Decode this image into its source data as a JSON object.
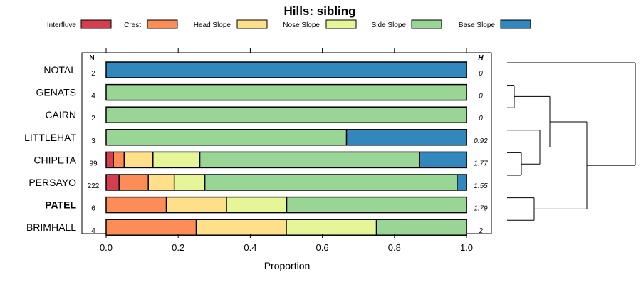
{
  "chart_data": {
    "type": "bar",
    "stacked": true,
    "orientation": "horizontal",
    "title": "Hills: sibling",
    "xlabel": "Proportion",
    "xlim": [
      0,
      1
    ],
    "xticks": [
      "0.0",
      "0.2",
      "0.4",
      "0.6",
      "0.8",
      "1.0"
    ],
    "n_header": "N",
    "h_header": "H",
    "legend_position": "top",
    "categories_order": [
      "Interfluve",
      "Crest",
      "Head Slope",
      "Nose Slope",
      "Side Slope",
      "Base Slope"
    ],
    "legend": [
      {
        "label": "Interfluve",
        "color": "#d53e4f"
      },
      {
        "label": "Crest",
        "color": "#fc8d59"
      },
      {
        "label": "Head Slope",
        "color": "#fee08b"
      },
      {
        "label": "Nose Slope",
        "color": "#e6f598"
      },
      {
        "label": "Side Slope",
        "color": "#99d594"
      },
      {
        "label": "Base Slope",
        "color": "#3288bd"
      }
    ],
    "rows": [
      {
        "name": "NOTAL",
        "bold": false,
        "n": "2",
        "h": "0",
        "values": [
          0,
          0,
          0,
          0,
          0,
          1
        ]
      },
      {
        "name": "GENATS",
        "bold": false,
        "n": "4",
        "h": "0",
        "values": [
          0,
          0,
          0,
          0,
          1,
          0
        ]
      },
      {
        "name": "CAIRN",
        "bold": false,
        "n": "2",
        "h": "0",
        "values": [
          0,
          0,
          0,
          0,
          1,
          0
        ]
      },
      {
        "name": "LITTLEHAT",
        "bold": false,
        "n": "3",
        "h": "0.92",
        "values": [
          0,
          0,
          0,
          0,
          0.667,
          0.333
        ]
      },
      {
        "name": "CHIPETA",
        "bold": false,
        "n": "99",
        "h": "1.77",
        "values": [
          0.02,
          0.03,
          0.08,
          0.13,
          0.61,
          0.13
        ]
      },
      {
        "name": "PERSAYO",
        "bold": false,
        "n": "222",
        "h": "1.55",
        "values": [
          0.036,
          0.081,
          0.072,
          0.085,
          0.7,
          0.026
        ]
      },
      {
        "name": "PATEL",
        "bold": true,
        "n": "6",
        "h": "1.79",
        "values": [
          0,
          0.167,
          0.167,
          0.167,
          0.5,
          0
        ]
      },
      {
        "name": "BRIMHALL",
        "bold": false,
        "n": "4",
        "h": "2",
        "values": [
          0,
          0.25,
          0.25,
          0.25,
          0.25,
          0
        ]
      }
    ]
  }
}
